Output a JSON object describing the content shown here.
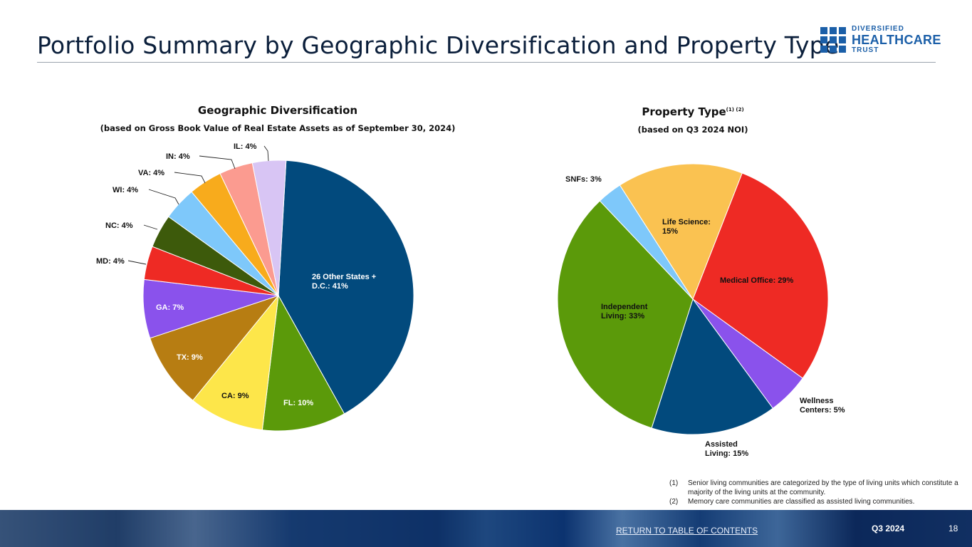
{
  "page": {
    "title": "Portfolio Summary by Geographic Diversification and Property Type"
  },
  "logo": {
    "line1": "DIVERSIFIED",
    "line2": "HEALTHCARE",
    "line3": "TRUST",
    "color": "#1b5fa8"
  },
  "chart_data": [
    {
      "type": "pie",
      "title": "Geographic Diversification",
      "subtitle": "(based on Gross Book Value of Real Estate Assets as of September 30, 2024)",
      "slices": [
        {
          "label": "26 Other States + D.C.: 41%",
          "value": 41,
          "color": "#024a7d"
        },
        {
          "label": "FL: 10%",
          "value": 10,
          "color": "#5b9a0a"
        },
        {
          "label": "CA: 9%",
          "value": 9,
          "color": "#fde64a"
        },
        {
          "label": "TX: 9%",
          "value": 9,
          "color": "#b77d12"
        },
        {
          "label": "GA: 7%",
          "value": 7,
          "color": "#8a52ec"
        },
        {
          "label": "MD: 4%",
          "value": 4,
          "color": "#ee2a24"
        },
        {
          "label": "NC: 4%",
          "value": 4,
          "color": "#3d5a0b"
        },
        {
          "label": "WI: 4%",
          "value": 4,
          "color": "#7ec8fa"
        },
        {
          "label": "VA: 4%",
          "value": 4,
          "color": "#f8ab1c"
        },
        {
          "label": "IN: 4%",
          "value": 4,
          "color": "#fb9b90"
        },
        {
          "label": "IL: 4%",
          "value": 4,
          "color": "#d8c5f4"
        }
      ]
    },
    {
      "type": "pie",
      "title": "Property Type",
      "title_superscript": "(1) (2)",
      "subtitle": "(based on Q3 2024 NOI)",
      "slices": [
        {
          "label": "Medical Office: 29%",
          "value": 29,
          "color": "#ee2a24"
        },
        {
          "label": "Wellness Centers: 5%",
          "value": 5,
          "color": "#8a52ec"
        },
        {
          "label": "Assisted Living: 15%",
          "value": 15,
          "color": "#024a7d"
        },
        {
          "label": "Independent Living: 33%",
          "value": 33,
          "color": "#5b9a0a"
        },
        {
          "label": "SNFs: 3%",
          "value": 3,
          "color": "#7ec8fa"
        },
        {
          "label": "Life Science: 15%",
          "value": 15,
          "color": "#fac251"
        }
      ]
    }
  ],
  "footnotes": [
    {
      "num": "(1)",
      "text": "Senior living communities are categorized by the type of living units which constitute a majority of the living units at the community."
    },
    {
      "num": "(2)",
      "text": "Memory care communities are classified as assisted living communities."
    }
  ],
  "footer": {
    "link_text": "RETURN TO TABLE OF CONTENTS",
    "quarter": "Q3 2024",
    "page_number": "18"
  }
}
